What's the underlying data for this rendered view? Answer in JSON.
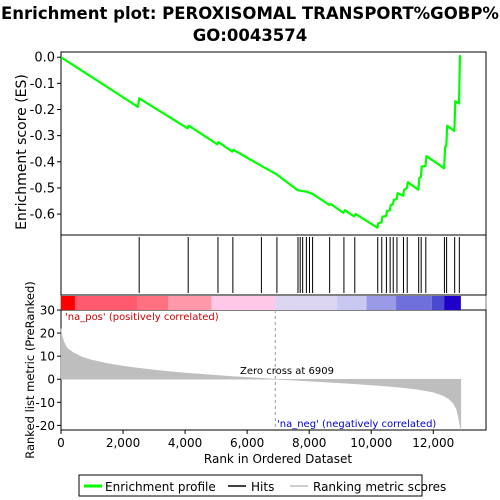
{
  "chart_data": {
    "type": "line",
    "title_line1": "Enrichment plot: PEROXISOMAL TRANSPORT%GOBP%",
    "title_line2": "GO:0043574",
    "es_panel": {
      "ylabel": "Enrichment score (ES)",
      "ylim": [
        -0.68,
        0.02
      ],
      "yticks": [
        0.0,
        -0.1,
        -0.2,
        -0.3,
        -0.4,
        -0.5,
        -0.6
      ],
      "ytick_labels": [
        "0.0",
        "-0.1",
        "-0.2",
        "-0.3",
        "-0.4",
        "-0.5",
        "-0.6"
      ],
      "grid": false,
      "series": [
        {
          "name": "Enrichment profile",
          "color": "#00ff00",
          "points": [
            [
              0,
              0.0
            ],
            [
              2480,
              -0.19
            ],
            [
              2520,
              -0.157
            ],
            [
              4080,
              -0.272
            ],
            [
              4120,
              -0.262
            ],
            [
              5040,
              -0.333
            ],
            [
              5080,
              -0.325
            ],
            [
              5520,
              -0.361
            ],
            [
              5560,
              -0.354
            ],
            [
              6450,
              -0.415
            ],
            [
              6950,
              -0.448
            ],
            [
              7620,
              -0.508
            ],
            [
              7700,
              -0.51
            ],
            [
              7780,
              -0.512
            ],
            [
              7900,
              -0.514
            ],
            [
              8000,
              -0.518
            ],
            [
              8100,
              -0.522
            ],
            [
              8650,
              -0.565
            ],
            [
              8700,
              -0.562
            ],
            [
              9100,
              -0.595
            ],
            [
              9150,
              -0.585
            ],
            [
              9450,
              -0.609
            ],
            [
              9500,
              -0.6
            ],
            [
              10200,
              -0.652
            ],
            [
              10230,
              -0.635
            ],
            [
              10330,
              -0.632
            ],
            [
              10360,
              -0.61
            ],
            [
              10480,
              -0.607
            ],
            [
              10510,
              -0.588
            ],
            [
              10600,
              -0.586
            ],
            [
              10630,
              -0.565
            ],
            [
              10700,
              -0.563
            ],
            [
              10730,
              -0.545
            ],
            [
              10820,
              -0.543
            ],
            [
              10850,
              -0.52
            ],
            [
              11030,
              -0.53
            ],
            [
              11060,
              -0.508
            ],
            [
              11150,
              -0.5
            ],
            [
              11180,
              -0.478
            ],
            [
              11520,
              -0.507
            ],
            [
              11550,
              -0.462
            ],
            [
              11600,
              -0.458
            ],
            [
              11630,
              -0.418
            ],
            [
              11750,
              -0.416
            ],
            [
              11780,
              -0.378
            ],
            [
              12350,
              -0.425
            ],
            [
              12380,
              -0.345
            ],
            [
              12420,
              -0.338
            ],
            [
              12450,
              -0.262
            ],
            [
              12680,
              -0.282
            ],
            [
              12710,
              -0.168
            ],
            [
              12830,
              -0.177
            ],
            [
              12860,
              0.005
            ],
            [
              12890,
              0.005
            ]
          ]
        }
      ]
    },
    "hits_panel": {
      "hit_positions": [
        2520,
        4100,
        5060,
        5540,
        6460,
        6960,
        7640,
        7710,
        7790,
        7910,
        8010,
        8110,
        8660,
        9120,
        9470,
        10210,
        10340,
        10490,
        10610,
        10710,
        10830,
        11040,
        11160,
        11530,
        11610,
        11760,
        12360,
        12430,
        12690,
        12840
      ],
      "hit_color": "#000000"
    },
    "rank_panel": {
      "ylabel": "Ranked list metric (PreRanked)",
      "ylim": [
        -22,
        30
      ],
      "yticks": [
        30,
        20,
        10,
        0,
        -10,
        -20
      ],
      "ytick_labels": [
        "30",
        "20",
        "10",
        "0",
        "-10",
        "-20"
      ],
      "metric_profile": [
        [
          0,
          22
        ],
        [
          30,
          19
        ],
        [
          100,
          16
        ],
        [
          200,
          13.5
        ],
        [
          400,
          11.5
        ],
        [
          700,
          9.5
        ],
        [
          1000,
          8.3
        ],
        [
          1500,
          6.8
        ],
        [
          2000,
          5.7
        ],
        [
          2500,
          4.8
        ],
        [
          3000,
          4.0
        ],
        [
          3500,
          3.3
        ],
        [
          4000,
          2.7
        ],
        [
          4500,
          2.2
        ],
        [
          5000,
          1.7
        ],
        [
          5500,
          1.2
        ],
        [
          6000,
          0.8
        ],
        [
          6500,
          0.4
        ],
        [
          6909,
          0.0
        ],
        [
          7500,
          -0.4
        ],
        [
          8000,
          -0.8
        ],
        [
          8500,
          -1.2
        ],
        [
          9000,
          -1.6
        ],
        [
          9500,
          -2.0
        ],
        [
          10000,
          -2.5
        ],
        [
          10500,
          -3.0
        ],
        [
          11000,
          -3.6
        ],
        [
          11500,
          -4.4
        ],
        [
          12000,
          -5.6
        ],
        [
          12300,
          -7.0
        ],
        [
          12500,
          -8.5
        ],
        [
          12650,
          -10.5
        ],
        [
          12750,
          -13.0
        ],
        [
          12820,
          -17.0
        ],
        [
          12860,
          -20.0
        ],
        [
          12890,
          -22.0
        ]
      ],
      "fill_color": "#bebebe",
      "pos_label": "'na_pos' (positively correlated)",
      "pos_color": "#cc0000",
      "neg_label": "'na_neg' (negatively correlated)",
      "neg_color": "#0000cc",
      "zero_cross_label": "Zero cross at 6909",
      "zero_cross": 6909
    },
    "colorbar_segments": [
      {
        "from": 0,
        "to": 450,
        "color": "#ff0000"
      },
      {
        "from": 450,
        "to": 2450,
        "color": "#ff5a6e"
      },
      {
        "from": 2450,
        "to": 3450,
        "color": "#ff7080"
      },
      {
        "from": 3450,
        "to": 4850,
        "color": "#ff98a8"
      },
      {
        "from": 4850,
        "to": 6900,
        "color": "#ffc8e6"
      },
      {
        "from": 6900,
        "to": 8900,
        "color": "#dcd6f2"
      },
      {
        "from": 8900,
        "to": 9850,
        "color": "#c8c8f0"
      },
      {
        "from": 9850,
        "to": 10800,
        "color": "#9a9ae6"
      },
      {
        "from": 10800,
        "to": 11950,
        "color": "#7070dc"
      },
      {
        "from": 11950,
        "to": 12350,
        "color": "#4a4ad0"
      },
      {
        "from": 12350,
        "to": 12890,
        "color": "#1e00c8"
      }
    ],
    "xaxis": {
      "label": "Rank in Ordered Dataset",
      "xlim": [
        0,
        13700
      ],
      "ticks": [
        0,
        2000,
        4000,
        6000,
        8000,
        10000,
        12000
      ],
      "tick_labels": [
        "0",
        "2,000",
        "4,000",
        "6,000",
        "8,000",
        "10,000",
        "12,000"
      ]
    },
    "legend": {
      "placement": "bottom",
      "items": [
        {
          "label": "Enrichment profile",
          "color": "#00ff00"
        },
        {
          "label": "Hits",
          "color": "#000000"
        },
        {
          "label": "Ranking metric scores",
          "color": "#bebebe"
        }
      ]
    }
  }
}
